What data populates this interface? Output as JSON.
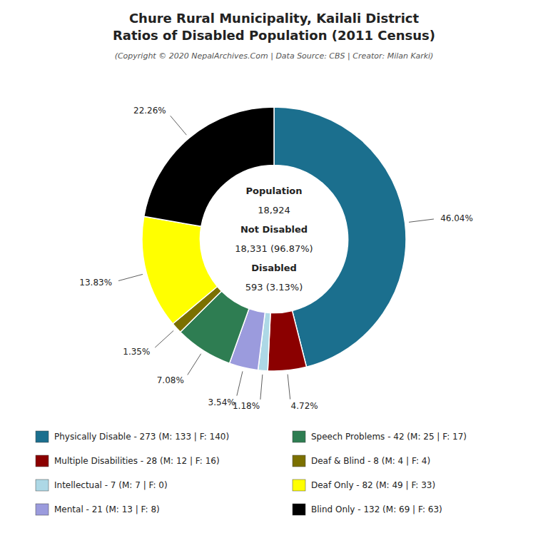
{
  "chart_data": {
    "type": "donut",
    "title": [
      "Chure Rural Municipality, Kailali District",
      "Ratios of Disabled Population (2011 Census)"
    ],
    "subtitle": "(Copyright © 2020 NepalArchives.Com | Data Source: CBS | Creator: Milan Karki)",
    "annotations": [
      "Population",
      "18,924",
      "Not Disabled",
      "18,331 (96.87%)",
      "Disabled",
      "593 (3.13%)"
    ],
    "categories": [
      "Physically Disable - 273 (M: 133 | F: 140)",
      "Multiple Disabilities - 28 (M: 12 | F: 16)",
      "Intellectual - 7 (M: 7 | F: 0)",
      "Mental - 21 (M: 13 | F: 8)",
      "Speech Problems - 42 (M: 25 | F: 17)",
      "Deaf & Blind - 8 (M: 4 | F: 4)",
      "Deaf Only - 82 (M: 49 | F: 33)",
      "Blind Only - 132 (M: 69 | F: 63)"
    ],
    "values": [
      46.04,
      4.72,
      1.18,
      3.54,
      7.08,
      1.35,
      13.83,
      22.26
    ],
    "value_labels": [
      "46.04%",
      "4.72%",
      "1.18%",
      "3.54%",
      "7.08%",
      "1.35%",
      "13.83%",
      "22.26%"
    ],
    "colors": [
      "#1b6f8e",
      "#8b0000",
      "#add8e6",
      "#9b9bdd",
      "#2e7d52",
      "#7b7000",
      "#ffff00",
      "#000000"
    ],
    "data_labels": true,
    "legend": "bottom"
  }
}
